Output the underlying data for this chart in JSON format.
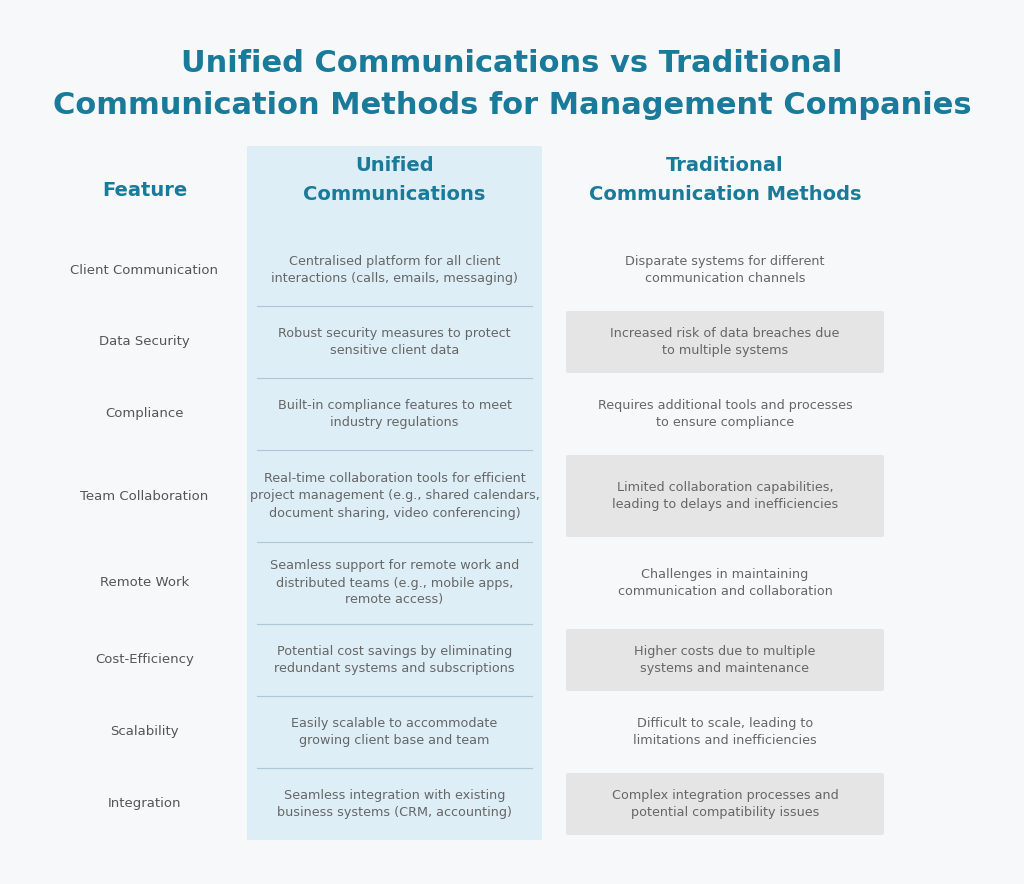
{
  "title_line1": "Unified Communications vs Traditional",
  "title_line2": "Communication Methods for Management Companies",
  "title_color": "#1a7a9a",
  "bg_color": "#f7f8fa",
  "header_feature": "Feature",
  "header_col1": "Unified\nCommunications",
  "header_col2": "Traditional\nCommunication Methods",
  "header_color": "#1a7a9a",
  "col1_bg": "#ddeef6",
  "col2_bg_shaded": "#e5e5e5",
  "row_text_color": "#666666",
  "feature_text_color": "#555555",
  "rows": [
    {
      "feature": "Client Communication",
      "col1": "Centralised platform for all client\ninteractions (calls, emails, messaging)",
      "col2": "Disparate systems for different\ncommunication channels",
      "shaded": false
    },
    {
      "feature": "Data Security",
      "col1": "Robust security measures to protect\nsensitive client data",
      "col2": "Increased risk of data breaches due\nto multiple systems",
      "shaded": true
    },
    {
      "feature": "Compliance",
      "col1": "Built-in compliance features to meet\nindustry regulations",
      "col2": "Requires additional tools and processes\nto ensure compliance",
      "shaded": false
    },
    {
      "feature": "Team Collaboration",
      "col1": "Real-time collaboration tools for efficient\nproject management (e.g., shared calendars,\ndocument sharing, video conferencing)",
      "col2": "Limited collaboration capabilities,\nleading to delays and inefficiencies",
      "shaded": true
    },
    {
      "feature": "Remote Work",
      "col1": "Seamless support for remote work and\ndistributed teams (e.g., mobile apps,\nremote access)",
      "col2": "Challenges in maintaining\ncommunication and collaboration",
      "shaded": false
    },
    {
      "feature": "Cost-Efficiency",
      "col1": "Potential cost savings by eliminating\nredundant systems and subscriptions",
      "col2": "Higher costs due to multiple\nsystems and maintenance",
      "shaded": true
    },
    {
      "feature": "Scalability",
      "col1": "Easily scalable to accommodate\ngrowing client base and team",
      "col2": "Difficult to scale, leading to\nlimitations and inefficiencies",
      "shaded": false
    },
    {
      "feature": "Integration",
      "col1": "Seamless integration with existing\nbusiness systems (CRM, accounting)",
      "col2": "Complex integration processes and\npotential compatibility issues",
      "shaded": true
    }
  ]
}
